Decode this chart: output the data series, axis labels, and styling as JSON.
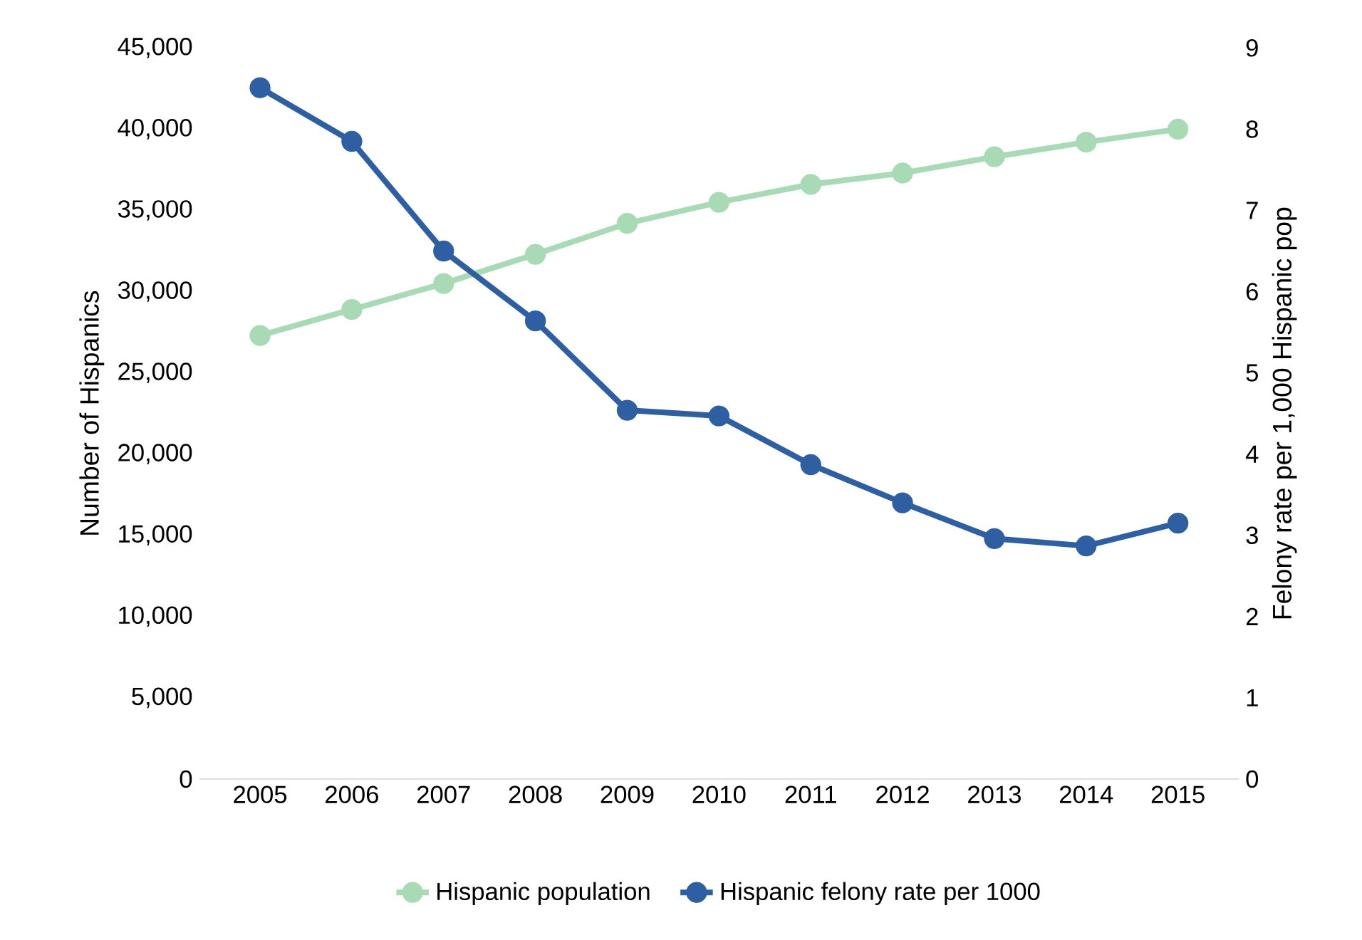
{
  "chart_data": {
    "type": "line",
    "categories": [
      "2005",
      "2006",
      "2007",
      "2008",
      "2009",
      "2010",
      "2011",
      "2012",
      "2013",
      "2014",
      "2015"
    ],
    "series": [
      {
        "name": "Hispanic population",
        "color": "#a8dbb5",
        "values": [
          27300,
          28900,
          30500,
          32300,
          34200,
          35500,
          36600,
          37300,
          38300,
          39200,
          40000
        ]
      },
      {
        "name": "Hispanic felony rate per 1000",
        "color": "#2e5fa3",
        "axis": "y2",
        "values": [
          8.51,
          7.85,
          6.5,
          5.64,
          4.54,
          4.47,
          3.87,
          3.4,
          2.96,
          2.87,
          3.15
        ]
      }
    ],
    "ylabel": "Number of Hispanics",
    "y2label": "Felony rate per 1,000 Hispanic pop",
    "ylim": [
      0,
      45000
    ],
    "yticks": [
      0,
      {
        "value": 5000,
        "label": "5,000"
      },
      {
        "value": 10000,
        "label": "10,000"
      },
      {
        "value": 15000,
        "label": "15,000"
      },
      {
        "value": 20000,
        "label": "20,000"
      },
      {
        "value": 25000,
        "label": "25,000"
      },
      {
        "value": 30000,
        "label": "30,000"
      },
      {
        "value": 35000,
        "label": "35,000"
      },
      {
        "value": 40000,
        "label": "40,000"
      },
      {
        "value": 45000,
        "label": "45,000"
      }
    ],
    "y2lim": [
      0,
      9
    ],
    "y2ticks": [
      0,
      1,
      2,
      3,
      4,
      5,
      6,
      7,
      8,
      9
    ],
    "marker": "circle",
    "legend": "bottom",
    "grid": false
  }
}
